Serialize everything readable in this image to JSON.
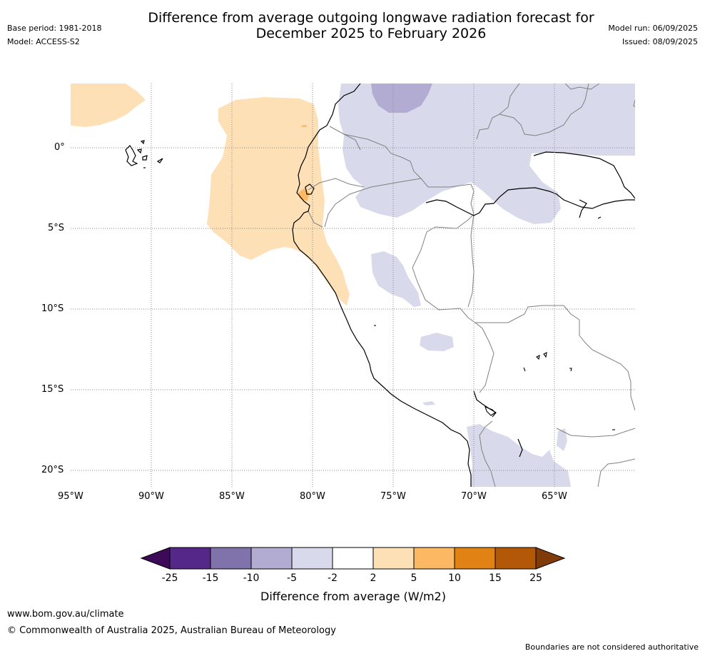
{
  "header": {
    "title_line1": "Difference from average outgoing longwave radiation forecast for",
    "title_line2": "December 2025 to February 2026",
    "base_period": "Base period: 1981-2018",
    "model": "Model: ACCESS-S2",
    "model_run": "Model run: 06/09/2025",
    "issued": "Issued: 08/09/2025"
  },
  "map": {
    "lat_labels": [
      "0°",
      "5°S",
      "10°S",
      "15°S",
      "20°S"
    ],
    "lon_labels": [
      "95°W",
      "90°W",
      "85°W",
      "80°W",
      "75°W",
      "70°W",
      "65°W"
    ],
    "colors": {
      "ocean_background": "#ffffff",
      "positive_2_5": "#fde0b6",
      "positive_5_10": "#f9b862",
      "negative_2_5": "#d9d9ea",
      "negative_5_10": "#b0a9d4",
      "coastline": "#000000",
      "border": "#808080"
    }
  },
  "colorbar": {
    "ticks": [
      "-25",
      "-15",
      "-10",
      "-5",
      "-2",
      "2",
      "5",
      "10",
      "15",
      "25"
    ],
    "colors": [
      "#3c0a56",
      "#542788",
      "#8073ac",
      "#b2abd2",
      "#d8daeb",
      "#ffffff",
      "#fee0b6",
      "#fdb863",
      "#e08214",
      "#b35806",
      "#7f3b08"
    ],
    "label": "Difference from average (W/m2)"
  },
  "footer": {
    "url": "www.bom.gov.au/climate",
    "copyright": "© Commonwealth of Australia 2025, Australian Bureau of Meteorology",
    "disclaimer": "Boundaries are not considered authoritative"
  }
}
